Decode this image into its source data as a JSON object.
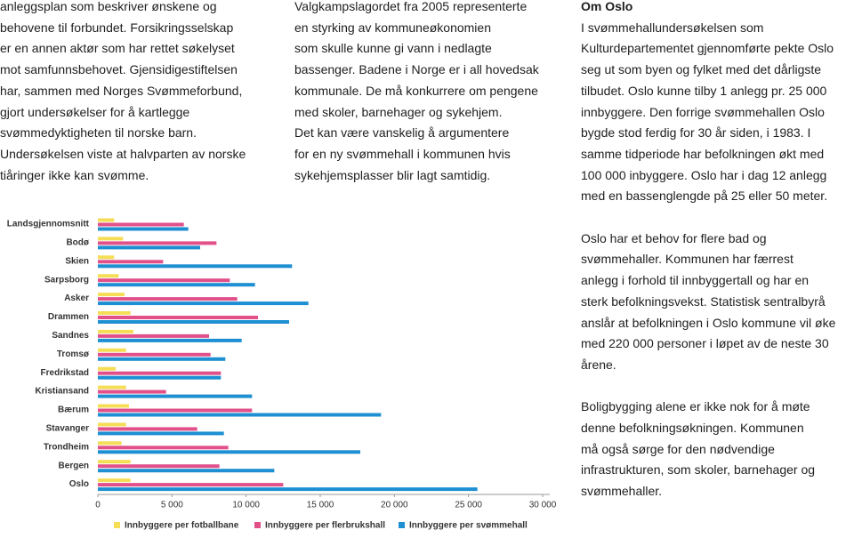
{
  "left_column": {
    "lines": [
      "anleggsplan som beskriver ønskene og",
      "behovene til forbundet. Forsikringsselskap",
      "er en annen aktør som har rettet søkelyset",
      "mot samfunnsbehovet. Gjensidigestiftelsen",
      "har, sammen med Norges Svømmeforbund,",
      "gjort undersøkelser for å kartlegge",
      "svømmedyktigheten til norske barn.",
      "Undersøkelsen viste at halvparten av norske",
      "tiåringer ikke kan svømme."
    ]
  },
  "middle_column": {
    "lines": [
      "Valgkampslagordet fra 2005 representerte",
      "en styrking av kommuneøkonomien",
      "som skulle kunne gi vann i nedlagte",
      "bassenger. Badene i Norge er i all hovedsak",
      "kommunale. De må konkurrere om pengene",
      "med skoler, barnehager og sykehjem.",
      "Det kan være vanskelig å argumentere",
      "for en ny svømmehall i kommunen hvis",
      "sykehjemsplasser blir lagt samtidig."
    ]
  },
  "right_column": {
    "heading": "Om Oslo",
    "paragraphs": [
      [
        "I svømmehallundersøkelsen som",
        "Kulturdepartementet gjennomførte pekte Oslo",
        "seg ut som byen og fylket med det dårligste",
        "tilbudet. Oslo kunne tilby 1 anlegg pr. 25 000",
        "innbyggere. Den forrige svømmehallen Oslo",
        "bygde stod ferdig for 30 år siden, i 1983. I",
        "samme tidperiode har befolkningen økt med",
        "100 000 inbyggere. Oslo har i dag 12 anlegg",
        "med en bassenglengde på 25 eller 50 meter."
      ],
      [
        "Oslo har et behov for flere bad og",
        "svømmehaller. Kommunen har færrest",
        "anlegg i forhold til innbyggertall og har en",
        "sterk befolkningsvekst.  Statistisk sentralbyrå",
        "anslår at befolkningen i Oslo kommune vil øke",
        "med 220 000 personer i løpet av de neste 30",
        "årene."
      ],
      [
        "Boligbygging alene er ikke nok for å møte",
        "denne befolkningsøkningen. Kommunen",
        "må også sørge for den nødvendige",
        "infrastrukturen, som skoler, barnehager og",
        "svømmehaller."
      ]
    ]
  },
  "chart_data": {
    "type": "bar",
    "orientation": "horizontal",
    "categories": [
      "Landsgjennomsnitt",
      "Bodø",
      "Skien",
      "Sarpsborg",
      "Asker",
      "Drammen",
      "Sandnes",
      "Tromsø",
      "Fredrikstad",
      "Kristiansand",
      "Bærum",
      "Stavanger",
      "Trondheim",
      "Bergen",
      "Oslo"
    ],
    "series": [
      {
        "name": "Innbyggere per fotballbane",
        "color": "#f5dd55",
        "values": [
          1100,
          1700,
          1100,
          1400,
          1800,
          2200,
          2400,
          1900,
          1200,
          1900,
          2100,
          1900,
          1600,
          2200,
          2200
        ]
      },
      {
        "name": "Innbyggere per flerbrukshall",
        "color": "#e2508a",
        "values": [
          5800,
          8000,
          4400,
          8900,
          9400,
          10800,
          7500,
          7600,
          8300,
          4600,
          10400,
          6700,
          8800,
          8200,
          12500
        ]
      },
      {
        "name": "Innbyggere per svømmehall",
        "color": "#1d8fd2",
        "values": [
          6100,
          6900,
          13100,
          10600,
          14200,
          12900,
          9700,
          8600,
          8300,
          10400,
          19100,
          8500,
          17700,
          11900,
          25600
        ]
      }
    ],
    "xlim": [
      0,
      30000
    ],
    "xticks": [
      0,
      {
        "value": 5000,
        "label": "5 000"
      },
      {
        "value": 10000,
        "label": "10 000"
      },
      {
        "value": 15000,
        "label": "15 000"
      },
      {
        "value": 20000,
        "label": "20 000"
      },
      {
        "value": 25000,
        "label": "25 000"
      },
      {
        "value": 30000,
        "label": "30 000"
      }
    ]
  }
}
